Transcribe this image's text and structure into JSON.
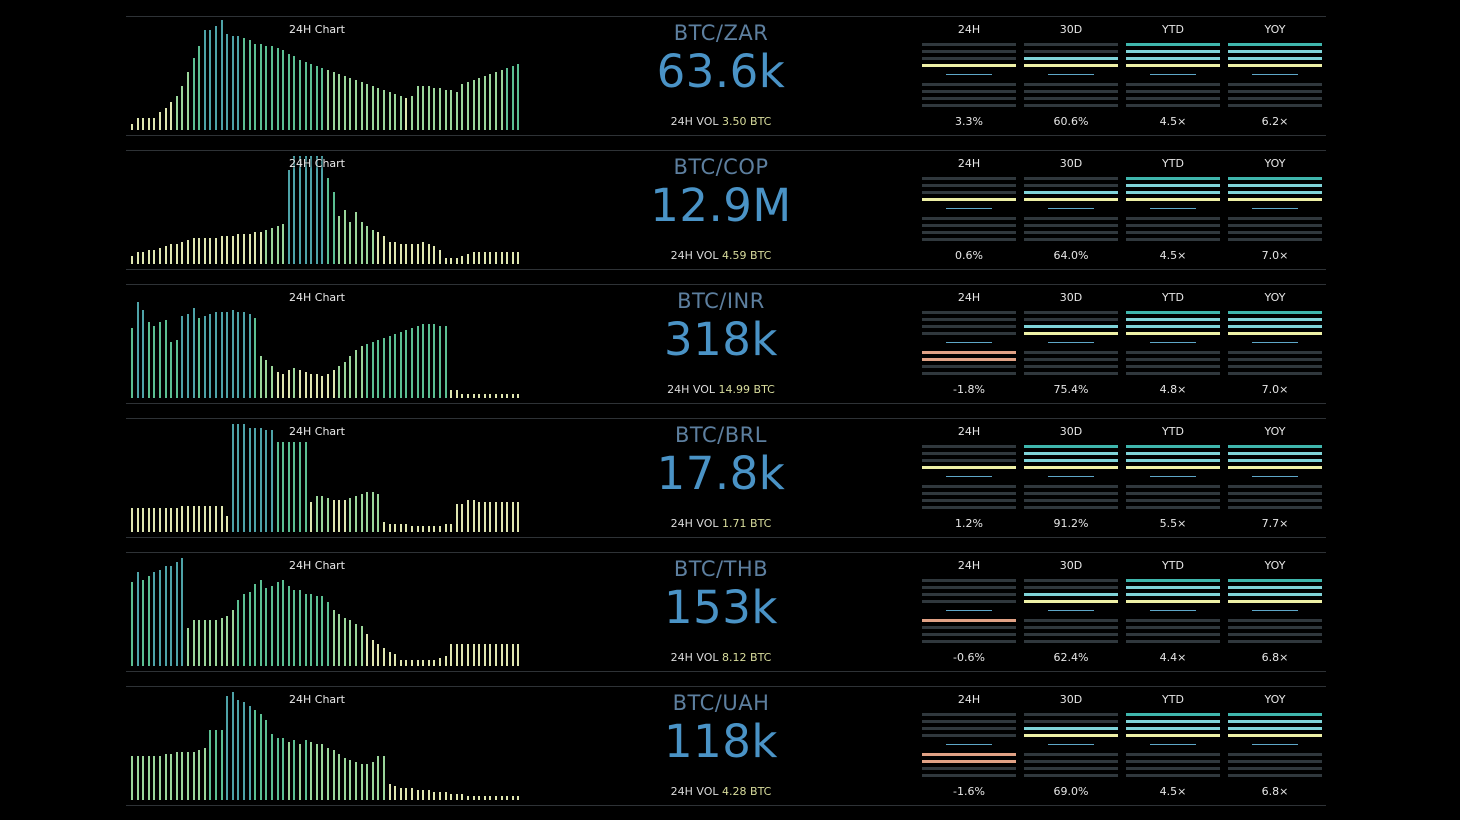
{
  "chart_label": "24H Chart",
  "vol_label": "24H VOL",
  "metric_labels": [
    "24H",
    "30D",
    "YTD",
    "YOY"
  ],
  "colors": {
    "gain_strong": "#3fb6ad",
    "gain_mid": "#7fd3d8",
    "gain_light": "#eef0a6",
    "loss": "#e0a185",
    "empty": "#30383d",
    "centerline": "#5ea7c8"
  },
  "pairs": [
    {
      "pair": "BTC/ZAR",
      "price": "63.6k",
      "vol": "3.50 BTC",
      "metrics": [
        "3.3%",
        "60.6%",
        "4.5×",
        "6.2×"
      ],
      "levels": [
        1,
        2,
        3,
        3
      ],
      "bars": [
        6,
        12,
        12,
        12,
        12,
        18,
        22,
        28,
        34,
        44,
        58,
        72,
        84,
        100,
        100,
        104,
        110,
        96,
        94,
        94,
        92,
        90,
        86,
        86,
        84,
        84,
        82,
        80,
        76,
        74,
        70,
        68,
        66,
        64,
        62,
        60,
        58,
        56,
        54,
        52,
        50,
        48,
        46,
        44,
        42,
        40,
        38,
        36,
        34,
        32,
        34,
        44,
        44,
        44,
        42,
        42,
        40,
        40,
        38,
        46,
        48,
        50,
        52,
        54,
        56,
        58,
        60,
        62,
        64,
        66
      ]
    },
    {
      "pair": "BTC/COP",
      "price": "12.9M",
      "vol": "4.59 BTC",
      "metrics": [
        "0.6%",
        "64.0%",
        "4.5×",
        "7.0×"
      ],
      "levels": [
        1,
        2,
        3,
        3
      ],
      "bars": [
        8,
        12,
        12,
        14,
        14,
        16,
        18,
        20,
        20,
        22,
        24,
        26,
        26,
        26,
        26,
        26,
        28,
        28,
        28,
        30,
        30,
        30,
        32,
        32,
        34,
        36,
        38,
        40,
        94,
        108,
        108,
        108,
        108,
        108,
        108,
        86,
        72,
        48,
        54,
        42,
        52,
        42,
        38,
        34,
        32,
        28,
        22,
        22,
        20,
        20,
        20,
        20,
        22,
        20,
        18,
        14,
        6,
        6,
        6,
        8,
        10,
        12,
        12,
        12,
        12,
        12,
        12,
        12,
        12,
        12
      ]
    },
    {
      "pair": "BTC/INR",
      "price": "318k",
      "vol": "14.99 BTC",
      "metrics": [
        "-1.8%",
        "75.4%",
        "4.8×",
        "7.0×"
      ],
      "levels": [
        -2,
        2,
        3,
        3
      ],
      "bars": [
        70,
        96,
        88,
        76,
        72,
        76,
        78,
        56,
        58,
        82,
        84,
        90,
        80,
        82,
        84,
        86,
        86,
        86,
        88,
        86,
        86,
        84,
        80,
        42,
        38,
        32,
        26,
        24,
        28,
        30,
        28,
        26,
        24,
        24,
        22,
        24,
        28,
        32,
        36,
        42,
        48,
        52,
        54,
        56,
        58,
        60,
        62,
        64,
        66,
        68,
        70,
        72,
        74,
        74,
        74,
        72,
        72,
        8,
        8,
        4,
        4,
        4,
        4,
        4,
        4,
        4,
        4,
        4,
        4,
        4
      ]
    },
    {
      "pair": "BTC/BRL",
      "price": "17.8k",
      "vol": "1.71 BTC",
      "metrics": [
        "1.2%",
        "91.2%",
        "5.5×",
        "7.7×"
      ],
      "levels": [
        1,
        3,
        3,
        3
      ],
      "bars": [
        24,
        24,
        24,
        24,
        24,
        24,
        24,
        24,
        24,
        26,
        26,
        26,
        26,
        26,
        26,
        26,
        26,
        16,
        108,
        108,
        108,
        104,
        104,
        104,
        102,
        102,
        90,
        90,
        90,
        90,
        90,
        90,
        30,
        36,
        36,
        34,
        32,
        32,
        32,
        34,
        36,
        38,
        40,
        40,
        38,
        10,
        8,
        8,
        8,
        8,
        6,
        6,
        6,
        6,
        6,
        6,
        8,
        8,
        28,
        28,
        32,
        32,
        30,
        30,
        30,
        30,
        30,
        30,
        30,
        30
      ]
    },
    {
      "pair": "BTC/THB",
      "price": "153k",
      "vol": "8.12 BTC",
      "metrics": [
        "-0.6%",
        "62.4%",
        "4.4×",
        "6.8×"
      ],
      "levels": [
        -1,
        2,
        3,
        3
      ],
      "bars": [
        84,
        94,
        86,
        90,
        94,
        96,
        100,
        100,
        104,
        108,
        38,
        46,
        46,
        46,
        46,
        46,
        48,
        50,
        56,
        66,
        72,
        74,
        82,
        86,
        78,
        80,
        84,
        86,
        80,
        76,
        76,
        72,
        72,
        70,
        70,
        64,
        56,
        52,
        48,
        46,
        42,
        40,
        32,
        26,
        22,
        18,
        14,
        12,
        6,
        6,
        6,
        6,
        6,
        6,
        6,
        8,
        10,
        22,
        22,
        22,
        22,
        22,
        22,
        22,
        22,
        22,
        22,
        22,
        22,
        22
      ]
    },
    {
      "pair": "BTC/UAH",
      "price": "118k",
      "vol": "4.28 BTC",
      "metrics": [
        "-1.6%",
        "69.0%",
        "4.5×",
        "6.8×"
      ],
      "levels": [
        -2,
        2,
        3,
        3
      ],
      "bars": [
        44,
        44,
        44,
        44,
        44,
        44,
        46,
        46,
        48,
        48,
        48,
        48,
        50,
        52,
        70,
        70,
        70,
        104,
        108,
        100,
        98,
        94,
        90,
        86,
        80,
        66,
        62,
        62,
        58,
        60,
        56,
        60,
        58,
        56,
        56,
        52,
        50,
        46,
        42,
        40,
        38,
        36,
        36,
        38,
        44,
        44,
        16,
        14,
        12,
        12,
        12,
        10,
        10,
        10,
        8,
        8,
        8,
        6,
        6,
        6,
        4,
        4,
        4,
        4,
        4,
        4,
        4,
        4,
        4,
        4
      ]
    }
  ]
}
